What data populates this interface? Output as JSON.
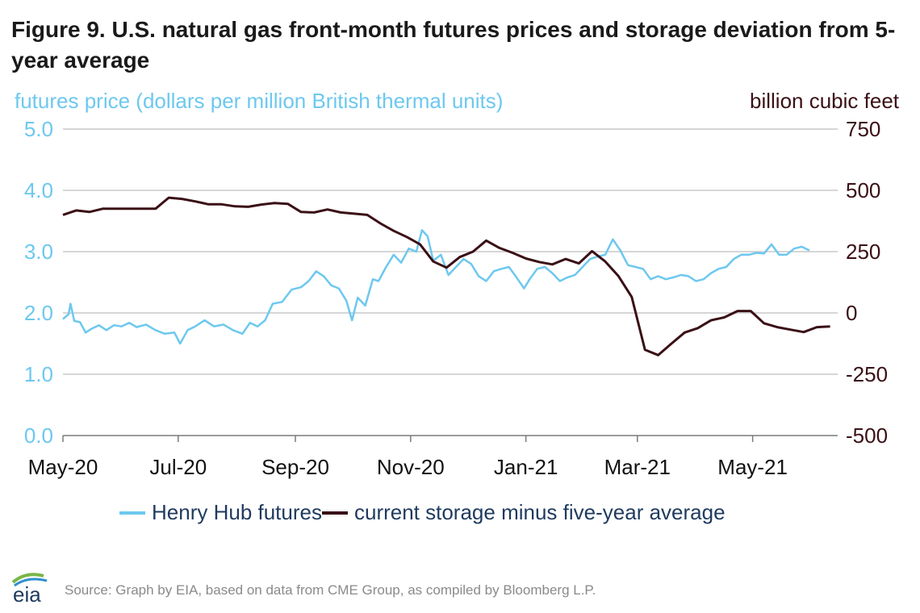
{
  "title": "Figure 9. U.S. natural gas front-month futures prices and storage deviation from 5-year average",
  "source": "Source: Graph by EIA, based on data from CME Group, as compiled by Bloomberg L.P.",
  "logo_text": "eia",
  "colors": {
    "futures": "#6dc8ef",
    "storage": "#3a1016",
    "grid": "#c8c8c8",
    "legend_text": "#1f3a5f"
  },
  "chart_data": {
    "type": "line",
    "ylabel": "futures price (dollars per million British thermal units)",
    "y2label": "billion cubic feet",
    "ylim": [
      0,
      5
    ],
    "y2lim": [
      -500,
      750
    ],
    "yticks": [
      "0.0",
      "1.0",
      "2.0",
      "3.0",
      "4.0",
      "5.0"
    ],
    "y2ticks": [
      "-500",
      "-250",
      "0",
      "250",
      "500",
      "750"
    ],
    "xlim": [
      "2020-05-01",
      "2021-06-15"
    ],
    "xticks": [
      {
        "label": "May-20",
        "date": "2020-05-01"
      },
      {
        "label": "Jul-20",
        "date": "2020-07-01"
      },
      {
        "label": "Sep-20",
        "date": "2020-09-01"
      },
      {
        "label": "Nov-20",
        "date": "2020-11-01"
      },
      {
        "label": "Jan-21",
        "date": "2021-01-01"
      },
      {
        "label": "Mar-21",
        "date": "2021-03-01"
      },
      {
        "label": "May-21",
        "date": "2021-05-01"
      }
    ],
    "grid": true,
    "legend_position": "bottom",
    "series": [
      {
        "name": "Henry Hub futures",
        "axis": "left",
        "points": [
          [
            "2020-05-01",
            1.9
          ],
          [
            "2020-05-04",
            1.98
          ],
          [
            "2020-05-05",
            2.15
          ],
          [
            "2020-05-07",
            1.87
          ],
          [
            "2020-05-10",
            1.85
          ],
          [
            "2020-05-13",
            1.68
          ],
          [
            "2020-05-16",
            1.74
          ],
          [
            "2020-05-20",
            1.8
          ],
          [
            "2020-05-24",
            1.72
          ],
          [
            "2020-05-28",
            1.8
          ],
          [
            "2020-06-01",
            1.78
          ],
          [
            "2020-06-05",
            1.84
          ],
          [
            "2020-06-09",
            1.77
          ],
          [
            "2020-06-14",
            1.81
          ],
          [
            "2020-06-19",
            1.72
          ],
          [
            "2020-06-24",
            1.66
          ],
          [
            "2020-06-29",
            1.68
          ],
          [
            "2020-07-02",
            1.5
          ],
          [
            "2020-07-06",
            1.72
          ],
          [
            "2020-07-10",
            1.78
          ],
          [
            "2020-07-15",
            1.88
          ],
          [
            "2020-07-20",
            1.78
          ],
          [
            "2020-07-25",
            1.81
          ],
          [
            "2020-07-30",
            1.72
          ],
          [
            "2020-08-04",
            1.66
          ],
          [
            "2020-08-08",
            1.84
          ],
          [
            "2020-08-12",
            1.78
          ],
          [
            "2020-08-16",
            1.88
          ],
          [
            "2020-08-20",
            2.15
          ],
          [
            "2020-08-25",
            2.18
          ],
          [
            "2020-08-30",
            2.38
          ],
          [
            "2020-09-04",
            2.42
          ],
          [
            "2020-09-08",
            2.52
          ],
          [
            "2020-09-12",
            2.68
          ],
          [
            "2020-09-16",
            2.6
          ],
          [
            "2020-09-20",
            2.45
          ],
          [
            "2020-09-24",
            2.4
          ],
          [
            "2020-09-28",
            2.2
          ],
          [
            "2020-10-01",
            1.88
          ],
          [
            "2020-10-04",
            2.25
          ],
          [
            "2020-10-08",
            2.12
          ],
          [
            "2020-10-12",
            2.55
          ],
          [
            "2020-10-15",
            2.52
          ],
          [
            "2020-10-19",
            2.75
          ],
          [
            "2020-10-23",
            2.95
          ],
          [
            "2020-10-27",
            2.82
          ],
          [
            "2020-10-31",
            3.05
          ],
          [
            "2020-11-04",
            3.0
          ],
          [
            "2020-11-07",
            3.35
          ],
          [
            "2020-11-10",
            3.25
          ],
          [
            "2020-11-13",
            2.85
          ],
          [
            "2020-11-17",
            2.95
          ],
          [
            "2020-11-21",
            2.62
          ],
          [
            "2020-11-25",
            2.75
          ],
          [
            "2020-11-29",
            2.88
          ],
          [
            "2020-12-03",
            2.8
          ],
          [
            "2020-12-07",
            2.6
          ],
          [
            "2020-12-11",
            2.52
          ],
          [
            "2020-12-15",
            2.68
          ],
          [
            "2020-12-19",
            2.72
          ],
          [
            "2020-12-23",
            2.75
          ],
          [
            "2020-12-27",
            2.58
          ],
          [
            "2020-12-31",
            2.4
          ],
          [
            "2021-01-03",
            2.55
          ],
          [
            "2021-01-07",
            2.72
          ],
          [
            "2021-01-11",
            2.75
          ],
          [
            "2021-01-15",
            2.65
          ],
          [
            "2021-01-19",
            2.52
          ],
          [
            "2021-01-23",
            2.58
          ],
          [
            "2021-01-27",
            2.62
          ],
          [
            "2021-01-31",
            2.75
          ],
          [
            "2021-02-04",
            2.88
          ],
          [
            "2021-02-08",
            2.92
          ],
          [
            "2021-02-12",
            2.95
          ],
          [
            "2021-02-16",
            3.2
          ],
          [
            "2021-02-20",
            3.02
          ],
          [
            "2021-02-24",
            2.78
          ],
          [
            "2021-02-28",
            2.75
          ],
          [
            "2021-03-04",
            2.72
          ],
          [
            "2021-03-08",
            2.55
          ],
          [
            "2021-03-12",
            2.6
          ],
          [
            "2021-03-16",
            2.55
          ],
          [
            "2021-03-20",
            2.58
          ],
          [
            "2021-03-24",
            2.62
          ],
          [
            "2021-03-28",
            2.6
          ],
          [
            "2021-04-01",
            2.52
          ],
          [
            "2021-04-05",
            2.55
          ],
          [
            "2021-04-09",
            2.65
          ],
          [
            "2021-04-13",
            2.72
          ],
          [
            "2021-04-17",
            2.75
          ],
          [
            "2021-04-21",
            2.88
          ],
          [
            "2021-04-25",
            2.95
          ],
          [
            "2021-04-29",
            2.95
          ],
          [
            "2021-05-03",
            2.98
          ],
          [
            "2021-05-07",
            2.97
          ],
          [
            "2021-05-11",
            3.12
          ],
          [
            "2021-05-15",
            2.95
          ],
          [
            "2021-05-19",
            2.95
          ],
          [
            "2021-05-23",
            3.05
          ],
          [
            "2021-05-27",
            3.08
          ],
          [
            "2021-05-31",
            3.02
          ]
        ]
      },
      {
        "name": "current storage minus five-year average",
        "axis": "right",
        "points": [
          [
            "2020-05-01",
            400
          ],
          [
            "2020-05-08",
            418
          ],
          [
            "2020-05-15",
            412
          ],
          [
            "2020-05-22",
            425
          ],
          [
            "2020-05-29",
            425
          ],
          [
            "2020-06-05",
            425
          ],
          [
            "2020-06-12",
            425
          ],
          [
            "2020-06-19",
            425
          ],
          [
            "2020-06-26",
            470
          ],
          [
            "2020-07-03",
            465
          ],
          [
            "2020-07-10",
            455
          ],
          [
            "2020-07-17",
            443
          ],
          [
            "2020-07-24",
            443
          ],
          [
            "2020-07-31",
            435
          ],
          [
            "2020-08-07",
            433
          ],
          [
            "2020-08-14",
            442
          ],
          [
            "2020-08-21",
            448
          ],
          [
            "2020-08-28",
            445
          ],
          [
            "2020-09-04",
            412
          ],
          [
            "2020-09-11",
            410
          ],
          [
            "2020-09-18",
            422
          ],
          [
            "2020-09-25",
            410
          ],
          [
            "2020-10-02",
            405
          ],
          [
            "2020-10-09",
            400
          ],
          [
            "2020-10-16",
            365
          ],
          [
            "2020-10-23",
            335
          ],
          [
            "2020-10-30",
            310
          ],
          [
            "2020-11-06",
            280
          ],
          [
            "2020-11-13",
            210
          ],
          [
            "2020-11-20",
            185
          ],
          [
            "2020-11-27",
            228
          ],
          [
            "2020-12-04",
            250
          ],
          [
            "2020-12-11",
            295
          ],
          [
            "2020-12-18",
            265
          ],
          [
            "2020-12-25",
            245
          ],
          [
            "2021-01-01",
            222
          ],
          [
            "2021-01-08",
            208
          ],
          [
            "2021-01-15",
            198
          ],
          [
            "2021-01-22",
            220
          ],
          [
            "2021-01-29",
            202
          ],
          [
            "2021-02-05",
            252
          ],
          [
            "2021-02-12",
            210
          ],
          [
            "2021-02-19",
            150
          ],
          [
            "2021-02-26",
            65
          ],
          [
            "2021-03-05",
            -150
          ],
          [
            "2021-03-12",
            -172
          ],
          [
            "2021-03-19",
            -125
          ],
          [
            "2021-03-26",
            -80
          ],
          [
            "2021-04-02",
            -62
          ],
          [
            "2021-04-09",
            -30
          ],
          [
            "2021-04-16",
            -18
          ],
          [
            "2021-04-23",
            8
          ],
          [
            "2021-04-30",
            8
          ],
          [
            "2021-05-07",
            -42
          ],
          [
            "2021-05-14",
            -58
          ],
          [
            "2021-05-21",
            -68
          ],
          [
            "2021-05-28",
            -78
          ],
          [
            "2021-06-04",
            -58
          ],
          [
            "2021-06-11",
            -55
          ]
        ]
      }
    ]
  }
}
